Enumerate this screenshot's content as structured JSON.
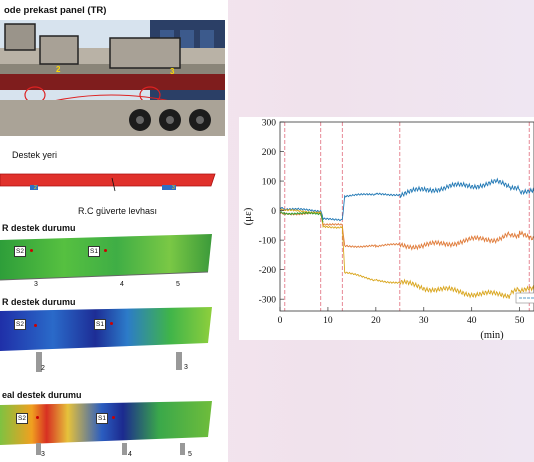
{
  "panel": {
    "title": "ode prekast panel (TR)",
    "support_label": "Destek yeri",
    "deck_label": "R.C güverte levhası",
    "photo_markers": [
      "2",
      "3"
    ],
    "fem_blocks": [
      {
        "title": "R destek durumu",
        "labels": [
          "S2",
          "S1"
        ],
        "supports": [
          "3",
          "4",
          "5"
        ]
      },
      {
        "title": "R destek durumu",
        "labels": [
          "S2",
          "S1"
        ],
        "supports": [
          "2",
          "3"
        ]
      },
      {
        "title": "eal destek durumu",
        "labels": [
          "S2",
          "S1"
        ],
        "supports": [
          "3",
          "4",
          "5"
        ]
      }
    ]
  },
  "chart_data": {
    "type": "line",
    "xlabel": "(min)",
    "ylabel": "(με)",
    "xlim": [
      0,
      53
    ],
    "ylim": [
      -340,
      300
    ],
    "x_ticks": [
      "0",
      "10",
      "20",
      "30",
      "40",
      "50"
    ],
    "y_ticks": [
      "300",
      "200",
      "100",
      "0",
      "-100",
      "-200",
      "-300"
    ],
    "event_lines_x": [
      1,
      8.5,
      13,
      25,
      52
    ],
    "series": [
      {
        "color": "#1f77b4",
        "points": [
          [
            0,
            10
          ],
          [
            1,
            5
          ],
          [
            8.5,
            0
          ],
          [
            9,
            -30
          ],
          [
            13,
            -30
          ],
          [
            13.5,
            50
          ],
          [
            20,
            55
          ],
          [
            25,
            55
          ],
          [
            30,
            70
          ],
          [
            35,
            80
          ],
          [
            40,
            85
          ],
          [
            45,
            95
          ],
          [
            48,
            80
          ],
          [
            50,
            70
          ],
          [
            53,
            65
          ]
        ]
      },
      {
        "color": "#e07b39",
        "points": [
          [
            0,
            -5
          ],
          [
            1,
            -10
          ],
          [
            8.5,
            -10
          ],
          [
            9,
            -45
          ],
          [
            13,
            -50
          ],
          [
            13.5,
            -120
          ],
          [
            20,
            -120
          ],
          [
            25,
            -115
          ],
          [
            30,
            -120
          ],
          [
            35,
            -110
          ],
          [
            40,
            -100
          ],
          [
            45,
            -95
          ],
          [
            48,
            -80
          ],
          [
            50,
            -80
          ],
          [
            53,
            -90
          ]
        ]
      },
      {
        "color": "#d9a51c",
        "points": [
          [
            0,
            0
          ],
          [
            1,
            0
          ],
          [
            8.5,
            -5
          ],
          [
            9,
            -55
          ],
          [
            13,
            -55
          ],
          [
            13.5,
            -210
          ],
          [
            20,
            -235
          ],
          [
            25,
            -245
          ],
          [
            30,
            -260
          ],
          [
            35,
            -270
          ],
          [
            40,
            -280
          ],
          [
            45,
            -285
          ],
          [
            48,
            -285
          ],
          [
            50,
            -270
          ],
          [
            53,
            -270
          ]
        ]
      },
      {
        "color": "#2ca02c",
        "points": [
          [
            0,
            -2
          ],
          [
            1,
            -8
          ],
          [
            8.5,
            -12
          ],
          [
            9,
            -40
          ]
        ]
      }
    ]
  }
}
